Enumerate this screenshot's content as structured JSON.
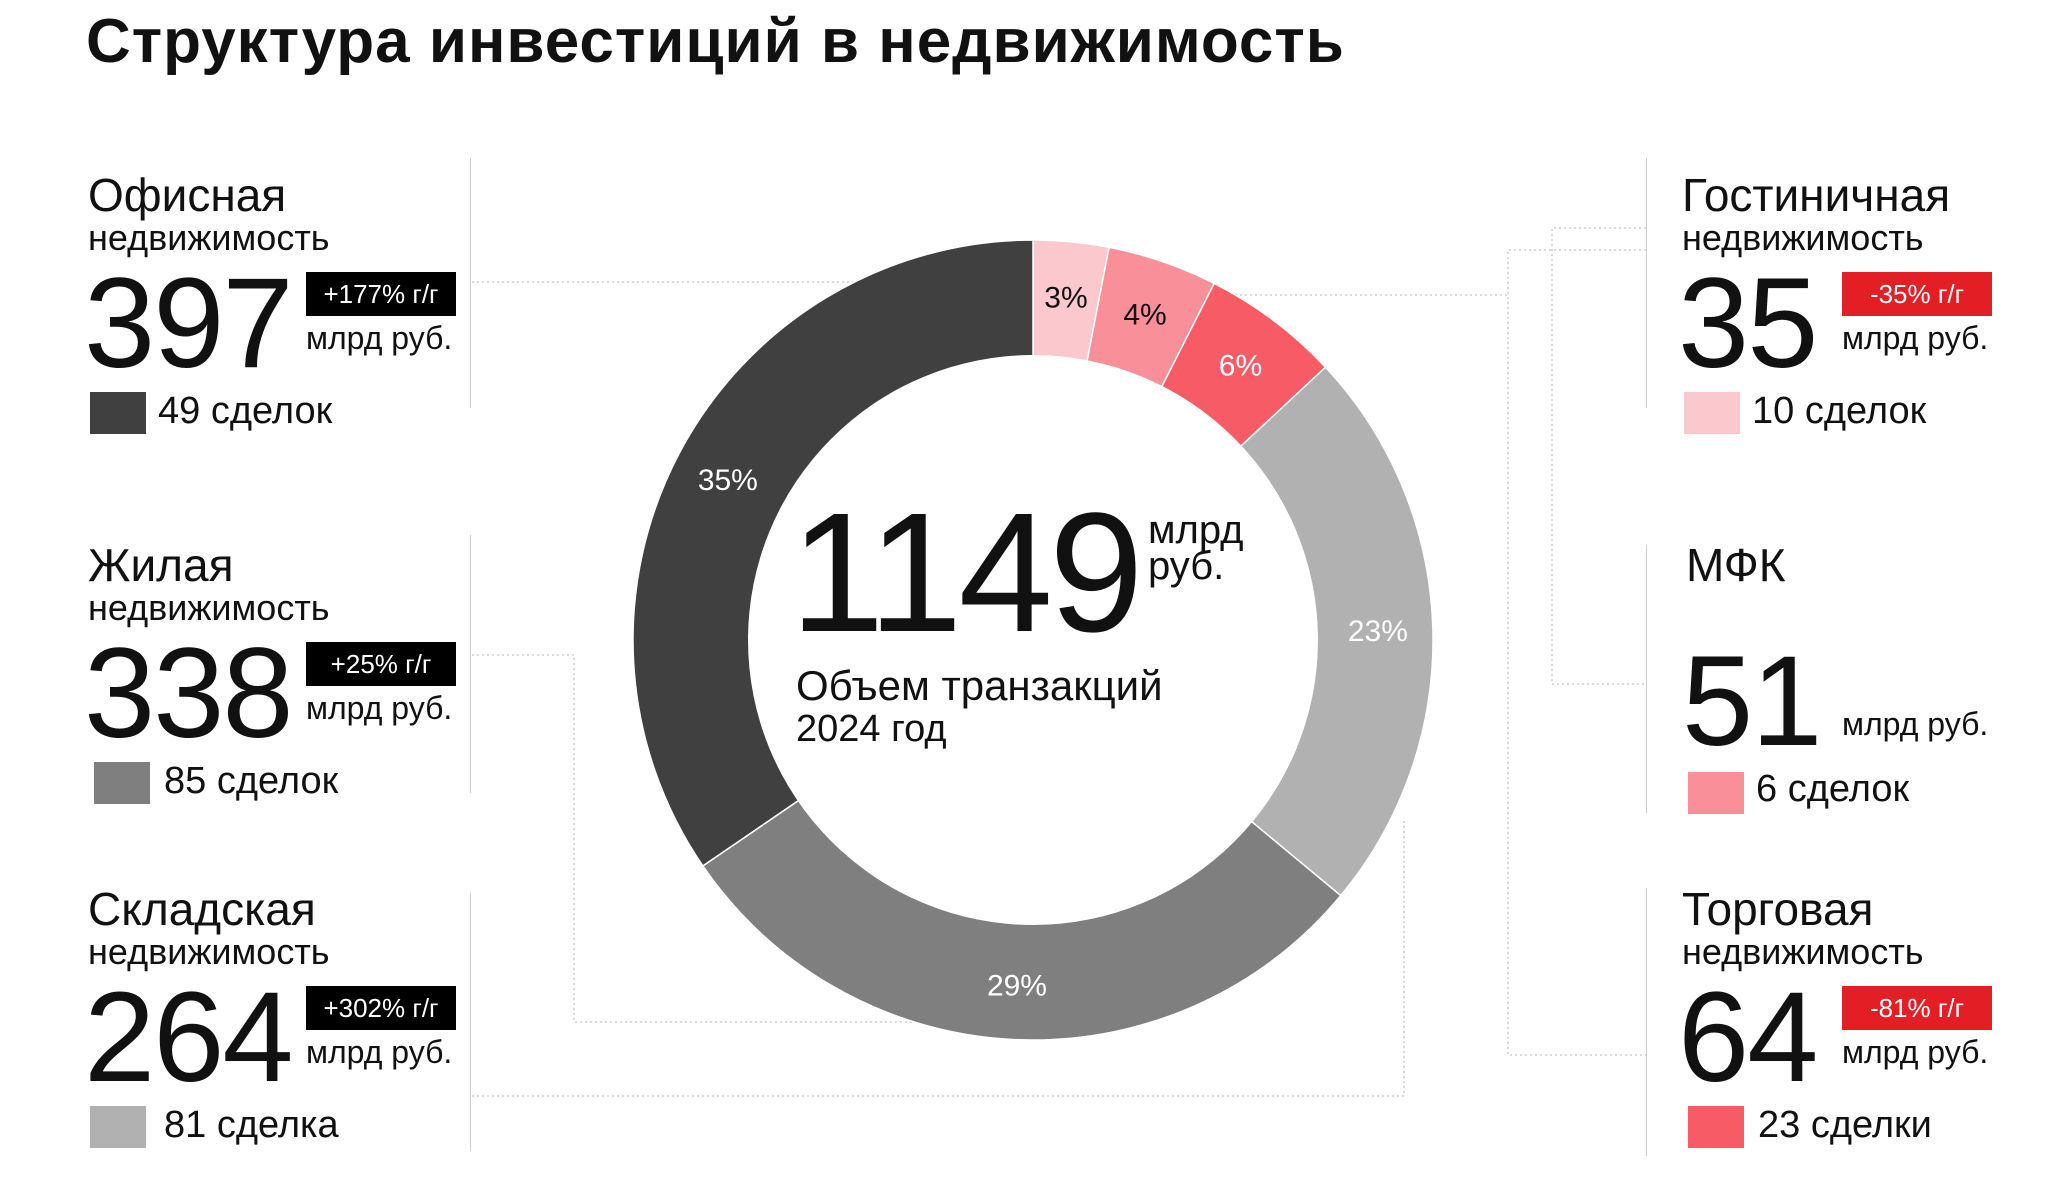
{
  "title": "Структура инвестиций в недвижимость",
  "center": {
    "value": "1149",
    "unit_line1": "млрд",
    "unit_line2": "руб.",
    "label_line1": "Объем транзакций",
    "label_line2": "2024 год"
  },
  "segments": [
    {
      "key": "office",
      "name": "Офисная",
      "sub": "недвижимость",
      "value": "397",
      "unit": "млрд руб.",
      "badge": "+177% г/г",
      "badge_color": "#000000",
      "deals": "49 сделок",
      "color": "#404040"
    },
    {
      "key": "residential",
      "name": "Жилая",
      "sub": "недвижимость",
      "value": "338",
      "unit": "млрд руб.",
      "badge": "+25% г/г",
      "badge_color": "#000000",
      "deals": "85 сделок",
      "color": "#7f7f7f"
    },
    {
      "key": "warehouse",
      "name": "Складская",
      "sub": "недвижимость",
      "value": "264",
      "unit": "млрд руб.",
      "badge": "+302% г/г",
      "badge_color": "#000000",
      "deals": "81 сделка",
      "color": "#b1b1b2"
    },
    {
      "key": "hotel",
      "name": "Гостиничная",
      "sub": "недвижимость",
      "value": "35",
      "unit": "млрд руб.",
      "badge": "-35% г/г",
      "badge_color": "#e31e24",
      "deals": "10 сделок",
      "color": "#fbc8cd"
    },
    {
      "key": "mfc",
      "name": "МФК",
      "sub": "",
      "value": "51",
      "unit": "млрд руб.",
      "badge": "",
      "badge_color": "",
      "deals": "6 сделок",
      "color": "#f98f98"
    },
    {
      "key": "retail",
      "name": "Торговая",
      "sub": "недвижимость",
      "value": "64",
      "unit": "млрд руб.",
      "badge": "-81% г/г",
      "badge_color": "#e31e24",
      "deals": "23 сделки",
      "color": "#f75c66"
    }
  ],
  "chart_data": {
    "type": "pie",
    "title": "Структура инвестиций в недвижимость",
    "subtitle": "Объем транзакций 2024 год",
    "center_value": 1149,
    "units": "млрд руб.",
    "categories": [
      "Гостиничная недвижимость",
      "МФК",
      "Торговая недвижимость",
      "Складская недвижимость",
      "Жилая недвижимость",
      "Офисная недвижимость"
    ],
    "values": [
      35,
      51,
      64,
      264,
      338,
      397
    ],
    "labels": [
      "3%",
      "4%",
      "6%",
      "23%",
      "29%",
      "35%"
    ],
    "colors": [
      "#fbc8cd",
      "#f98f98",
      "#f75c66",
      "#b1b1b2",
      "#7f7f7f",
      "#404040"
    ],
    "label_colors": [
      "#111111",
      "#111111",
      "#ffffff",
      "#ffffff",
      "#ffffff",
      "#ffffff"
    ]
  }
}
